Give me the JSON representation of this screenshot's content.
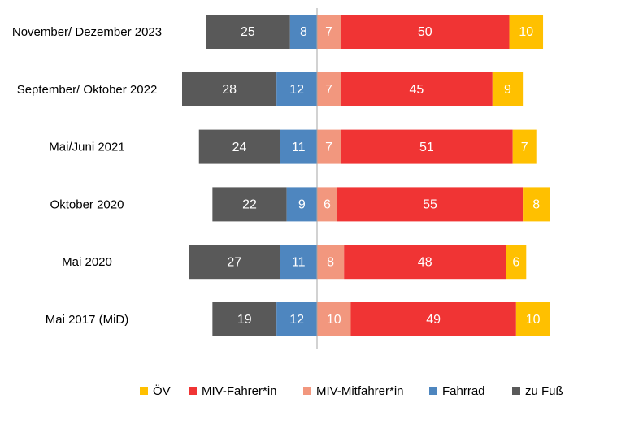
{
  "chart_data": {
    "type": "bar",
    "orientation": "horizontal",
    "stacked": true,
    "diverging": true,
    "categories": [
      "November/ Dezember 2023",
      "September/ Oktober 2022",
      "Mai/Juni 2021",
      "Oktober 2020",
      "Mai 2020",
      "Mai 2017 (MiD)"
    ],
    "series": [
      {
        "name": "zu Fuß",
        "side": "left",
        "color": "#595959",
        "label_color": "#ffffff",
        "values": [
          25,
          28,
          24,
          22,
          27,
          19
        ]
      },
      {
        "name": "Fahrrad",
        "side": "left",
        "color": "#4e86bf",
        "label_color": "#ffffff",
        "values": [
          8,
          12,
          11,
          9,
          11,
          12
        ]
      },
      {
        "name": "MIV-Mitfahrer*in",
        "side": "right",
        "color": "#f2977e",
        "label_color": "#ffffff",
        "values": [
          7,
          7,
          7,
          6,
          8,
          10
        ]
      },
      {
        "name": "MIV-Fahrer*in",
        "side": "right",
        "color": "#f03434",
        "label_color": "#ffffff",
        "values": [
          50,
          45,
          51,
          55,
          48,
          49
        ]
      },
      {
        "name": "ÖV",
        "side": "right",
        "color": "#ffc000",
        "label_color": "#ffffff",
        "values": [
          10,
          9,
          7,
          8,
          6,
          10
        ]
      }
    ],
    "legend": {
      "position": "bottom",
      "order": [
        "ÖV",
        "MIV-Fahrer*in",
        "MIV-Mitfahrer*in",
        "Fahrrad",
        "zu Fuß"
      ]
    },
    "grid": false,
    "title": "",
    "xlabel": "",
    "ylabel": ""
  }
}
